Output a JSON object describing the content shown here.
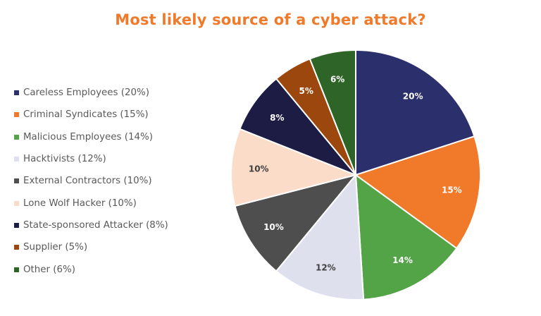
{
  "title": "Most likely source of a cyber attack?",
  "chart_data": {
    "type": "pie",
    "title": "Most likely source of a cyber attack?",
    "categories": [
      "Careless Employees",
      "Criminal Syndicates",
      "Malicious Employees",
      "Hacktivists",
      "External Contractors",
      "Lone Wolf Hacker",
      "State-sponsored Attacker",
      "Supplier",
      "Other"
    ],
    "values": [
      20,
      15,
      14,
      12,
      10,
      10,
      8,
      5,
      6
    ],
    "unit": "%",
    "colors": [
      "#2b2f6b",
      "#f07a2a",
      "#53a447",
      "#dfe0ee",
      "#4e4e4e",
      "#fbdcc8",
      "#1c1c44",
      "#9c470e",
      "#2f6428"
    ],
    "label_colors": [
      "#ffffff",
      "#ffffff",
      "#ffffff",
      "#404040",
      "#ffffff",
      "#404040",
      "#ffffff",
      "#ffffff",
      "#ffffff"
    ],
    "data_labels": [
      "20%",
      "15%",
      "14%",
      "12%",
      "10%",
      "10%",
      "8%",
      "5%",
      "6%"
    ],
    "legend_position": "left",
    "start_angle": "12 o'clock, clockwise"
  },
  "legend": [
    {
      "label": "Careless Employees (20%)",
      "color": "#2b2f6b"
    },
    {
      "label": "Criminal Syndicates (15%)",
      "color": "#f07a2a"
    },
    {
      "label": "Malicious Employees (14%)",
      "color": "#53a447"
    },
    {
      "label": "Hacktivists (12%)",
      "color": "#dfe0ee"
    },
    {
      "label": "External Contractors (10%)",
      "color": "#4e4e4e"
    },
    {
      "label": "Lone Wolf Hacker (10%)",
      "color": "#fbdcc8"
    },
    {
      "label": "State-sponsored Attacker (8%)",
      "color": "#1c1c44"
    },
    {
      "label": "Supplier (5%)",
      "color": "#9c470e"
    },
    {
      "label": "Other (6%)",
      "color": "#2f6428"
    }
  ]
}
